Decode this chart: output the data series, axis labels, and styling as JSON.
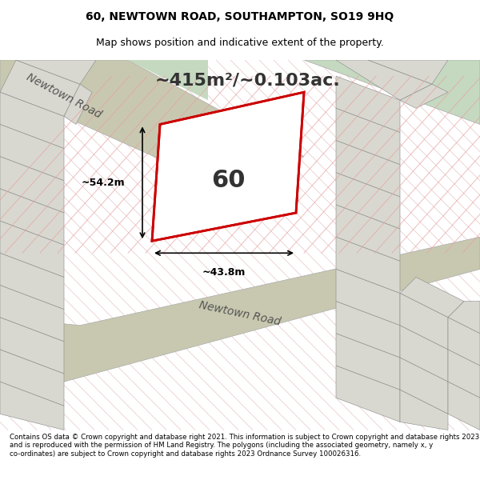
{
  "title_line1": "60, NEWTOWN ROAD, SOUTHAMPTON, SO19 9HQ",
  "title_line2": "Map shows position and indicative extent of the property.",
  "area_text": "~415m²/~0.103ac.",
  "label_60": "60",
  "dim_vertical": "~54.2m",
  "dim_horizontal": "~43.8m",
  "footer_text": "Contains OS data © Crown copyright and database right 2021. This information is subject to Crown copyright and database rights 2023 and is reproduced with the permission of HM Land Registry. The polygons (including the associated geometry, namely x, y co-ordinates) are subject to Crown copyright and database rights 2023 Ordnance Survey 100026316.",
  "bg_color": "#f5f5f0",
  "map_bg": "#e8e8e0",
  "road_color_upper": "#c8c8b0",
  "hatch_color": "#e8b8b8",
  "plot_outline_color": "#cc0000",
  "road_label_upper": "Newtown Road",
  "road_label_lower": "Newtown Road"
}
